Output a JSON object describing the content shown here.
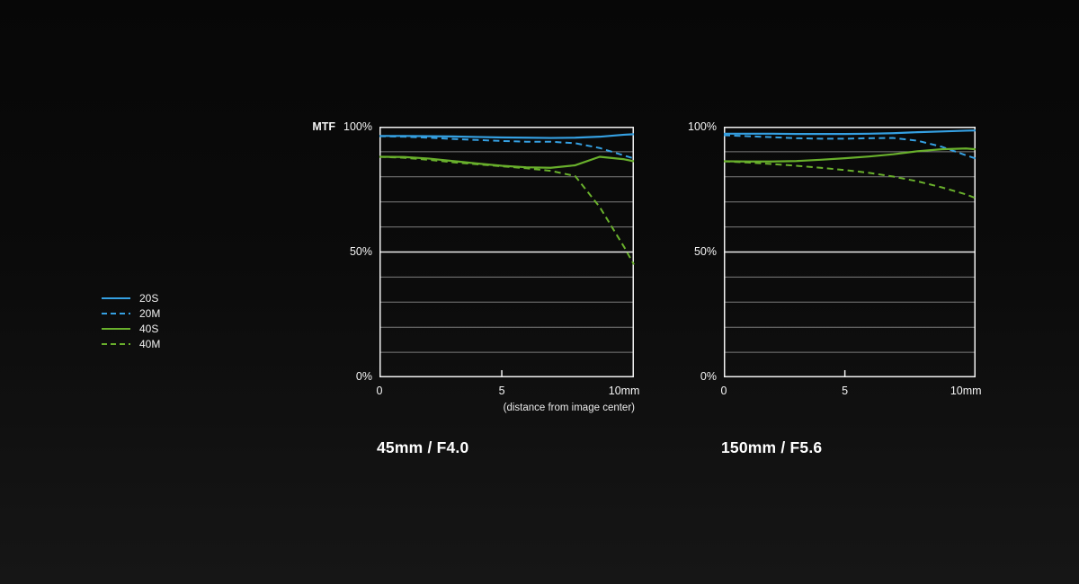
{
  "colors": {
    "background_top": "#070707",
    "background_bottom": "#161616",
    "border": "#f2f2f2",
    "grid_minor": "#7d7d7d",
    "grid_major": "#ededed",
    "blue": "#35a0e2",
    "green": "#69b02c",
    "text": "#f5f5f5"
  },
  "legend": {
    "items": [
      {
        "label": "20S",
        "color": "#35a0e2",
        "style": "solid"
      },
      {
        "label": "20M",
        "color": "#35a0e2",
        "style": "dashed"
      },
      {
        "label": "40S",
        "color": "#69b02c",
        "style": "solid"
      },
      {
        "label": "40M",
        "color": "#69b02c",
        "style": "dashed"
      }
    ]
  },
  "chart_data": [
    {
      "type": "line",
      "title": "45mm / F4.0",
      "ylabel": "MTF",
      "xlabel": "(distance from image center)",
      "xlim": [
        0,
        10.4
      ],
      "ylim": [
        0,
        100
      ],
      "grid_interval": 10,
      "x": [
        0,
        1,
        2,
        3,
        4,
        5,
        6,
        7,
        8,
        9,
        10,
        10.4
      ],
      "xticks": [
        {
          "value": 0,
          "label": "0",
          "tick": false
        },
        {
          "value": 5,
          "label": "5",
          "tick": true
        },
        {
          "value": 10,
          "label": "10mm",
          "tick": false
        }
      ],
      "yticks": [
        {
          "value": 100,
          "label": "100%"
        },
        {
          "value": 50,
          "label": "50%"
        },
        {
          "value": 0,
          "label": "0%"
        }
      ],
      "series": [
        {
          "name": "20S",
          "color": "#35a0e2",
          "dashed": false,
          "values": [
            96.3,
            96.3,
            96.2,
            96.1,
            95.9,
            95.7,
            95.6,
            95.5,
            95.6,
            96.0,
            96.8,
            97.0
          ]
        },
        {
          "name": "20M",
          "color": "#35a0e2",
          "dashed": true,
          "values": [
            96.2,
            96.0,
            95.6,
            95.1,
            94.7,
            94.3,
            94.0,
            94.0,
            93.4,
            91.5,
            88.5,
            87.3
          ]
        },
        {
          "name": "40S",
          "color": "#69b02c",
          "dashed": false,
          "values": [
            88.0,
            87.9,
            87.3,
            86.3,
            85.3,
            84.4,
            83.8,
            83.6,
            84.6,
            88.0,
            87.0,
            86.2
          ]
        },
        {
          "name": "40M",
          "color": "#69b02c",
          "dashed": true,
          "values": [
            88.0,
            87.6,
            86.8,
            85.8,
            85.0,
            84.2,
            83.4,
            82.4,
            80.3,
            68.0,
            52.0,
            45.0
          ]
        }
      ]
    },
    {
      "type": "line",
      "title": "150mm / F5.6",
      "ylabel": "",
      "xlabel": "",
      "xlim": [
        0,
        10.4
      ],
      "ylim": [
        0,
        100
      ],
      "grid_interval": 10,
      "x": [
        0,
        1,
        2,
        3,
        4,
        5,
        6,
        7,
        8,
        9,
        10,
        10.4
      ],
      "xticks": [
        {
          "value": 0,
          "label": "0",
          "tick": false
        },
        {
          "value": 5,
          "label": "5",
          "tick": true
        },
        {
          "value": 10,
          "label": "10mm",
          "tick": false
        }
      ],
      "yticks": [
        {
          "value": 100,
          "label": "100%"
        },
        {
          "value": 50,
          "label": "50%"
        },
        {
          "value": 0,
          "label": "0%"
        }
      ],
      "series": [
        {
          "name": "20S",
          "color": "#35a0e2",
          "dashed": false,
          "values": [
            97.2,
            97.2,
            97.2,
            97.1,
            97.1,
            97.1,
            97.2,
            97.4,
            97.8,
            98.1,
            98.4,
            98.5
          ]
        },
        {
          "name": "20M",
          "color": "#35a0e2",
          "dashed": true,
          "values": [
            96.6,
            96.2,
            95.8,
            95.4,
            95.2,
            95.2,
            95.4,
            95.5,
            94.4,
            92.0,
            88.6,
            87.3
          ]
        },
        {
          "name": "40S",
          "color": "#69b02c",
          "dashed": false,
          "values": [
            86.2,
            86.1,
            86.1,
            86.3,
            86.8,
            87.4,
            88.1,
            89.0,
            90.2,
            91.0,
            91.3,
            91.0
          ]
        },
        {
          "name": "40M",
          "color": "#69b02c",
          "dashed": true,
          "values": [
            86.2,
            85.7,
            85.1,
            84.4,
            83.6,
            82.7,
            81.6,
            80.1,
            78.2,
            75.8,
            73.0,
            71.5
          ]
        }
      ]
    }
  ]
}
